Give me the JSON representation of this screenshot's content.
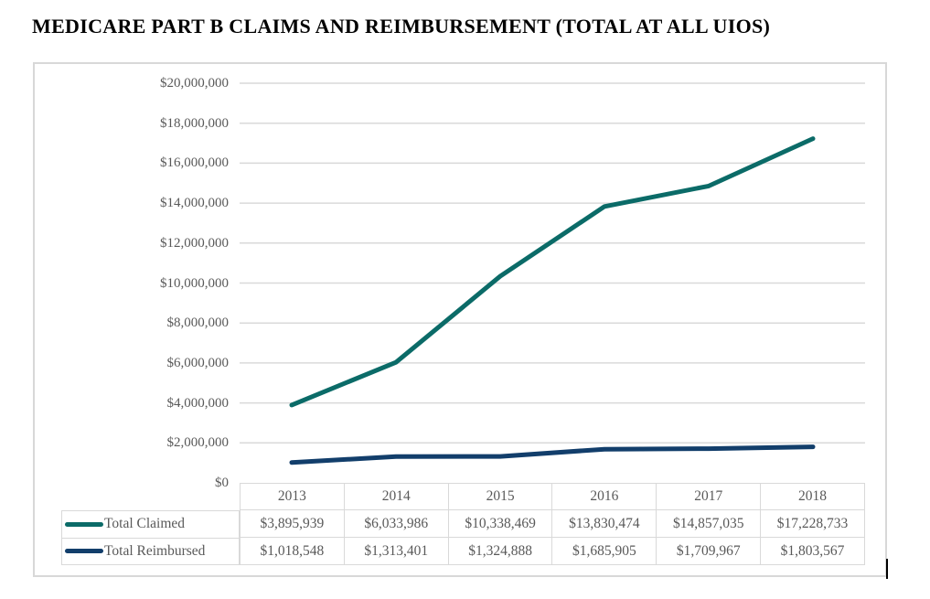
{
  "title": "MEDICARE PART B CLAIMS AND REIMBURSEMENT (TOTAL AT ALL UIOS)",
  "colors": {
    "series_claimed": "#0B6B68",
    "series_reimbursed": "#123E6B",
    "gridline": "#D9D9D9",
    "table_border": "#D9D9D9",
    "chart_box_border": "#D8D8D8",
    "label_text": "#595959",
    "title_text": "#000000",
    "background": "#FFFFFF"
  },
  "chart_data": {
    "type": "line",
    "title": "MEDICARE PART B CLAIMS AND REIMBURSEMENT (TOTAL AT ALL UIOS)",
    "categories": [
      "2013",
      "2014",
      "2015",
      "2016",
      "2017",
      "2018"
    ],
    "series": [
      {
        "name": "Total Claimed",
        "color": "#0B6B68",
        "values": [
          3895939,
          6033986,
          10338469,
          13830474,
          14857035,
          17228733
        ],
        "value_labels": [
          "$3,895,939",
          "$6,033,986",
          "$10,338,469",
          "$13,830,474",
          "$14,857,035",
          "$17,228,733"
        ]
      },
      {
        "name": "Total Reimbursed",
        "color": "#123E6B",
        "values": [
          1018548,
          1313401,
          1324888,
          1685905,
          1709967,
          1803567
        ],
        "value_labels": [
          "$1,018,548",
          "$1,313,401",
          "$1,324,888",
          "$1,685,905",
          "$1,709,967",
          "$1,803,567"
        ]
      }
    ],
    "xlabel": "",
    "ylabel": "",
    "y_axis": {
      "min": 0,
      "max": 20000000,
      "step": 2000000,
      "tick_labels_top_to_bottom": [
        "$20,000,000",
        "$18,000,000",
        "$16,000,000",
        "$14,000,000",
        "$12,000,000",
        "$10,000,000",
        "$8,000,000",
        "$6,000,000",
        "$4,000,000",
        "$2,000,000",
        "$0"
      ]
    },
    "grid": true,
    "legend_position": "data-table-left",
    "data_table_shown": true,
    "point_markers": false
  }
}
